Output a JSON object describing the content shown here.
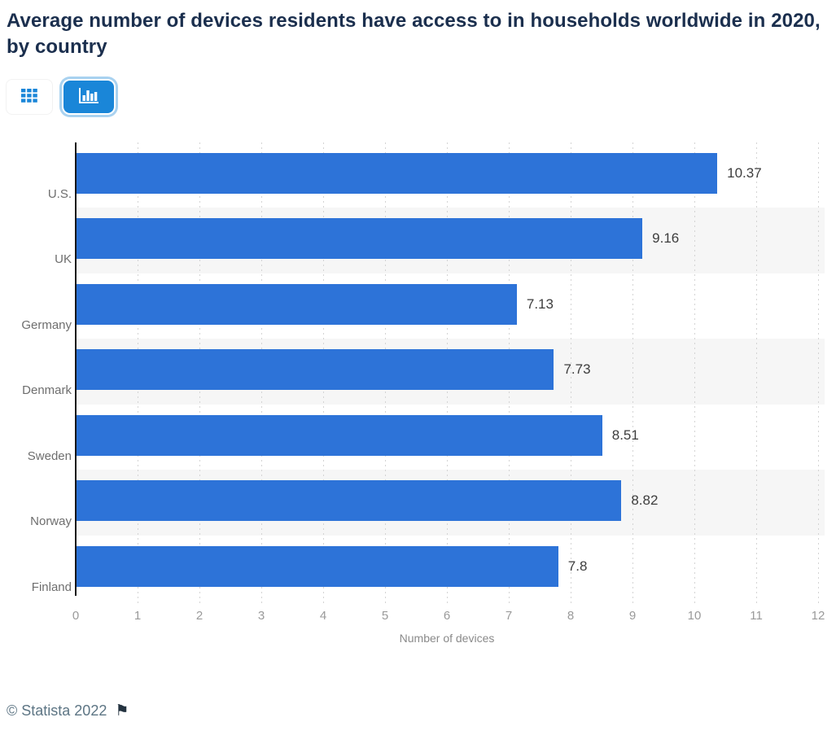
{
  "header": {
    "title": "Average number of devices residents have access to in households worldwide in 2020, by country"
  },
  "toolbar": {
    "buttons": [
      {
        "id": "table-view",
        "icon": "table-grid-icon",
        "active": false
      },
      {
        "id": "chart-view",
        "icon": "bar-chart-icon",
        "active": true
      }
    ],
    "active_color": "#1a86d8"
  },
  "chart_data": {
    "type": "bar",
    "orientation": "horizontal",
    "title": "Average number of devices residents have access to in households worldwide in 2020, by country",
    "categories": [
      "U.S.",
      "UK",
      "Germany",
      "Denmark",
      "Sweden",
      "Norway",
      "Finland"
    ],
    "values": [
      10.37,
      9.16,
      7.13,
      7.73,
      8.51,
      8.82,
      7.8
    ],
    "value_labels": [
      "10.37",
      "9.16",
      "7.13",
      "7.73",
      "8.51",
      "8.82",
      "7.8"
    ],
    "xlabel": "Number of devices",
    "xlim": [
      0,
      12
    ],
    "xticks": [
      0,
      1,
      2,
      3,
      4,
      5,
      6,
      7,
      8,
      9,
      10,
      11,
      12
    ],
    "grid": "vertical-dashed",
    "legend": "none",
    "bar_color": "#2d73d8",
    "row_band_color": "#f6f6f6"
  },
  "footer": {
    "copyright": "© Statista 2022",
    "flag_icon": "flag-icon"
  }
}
